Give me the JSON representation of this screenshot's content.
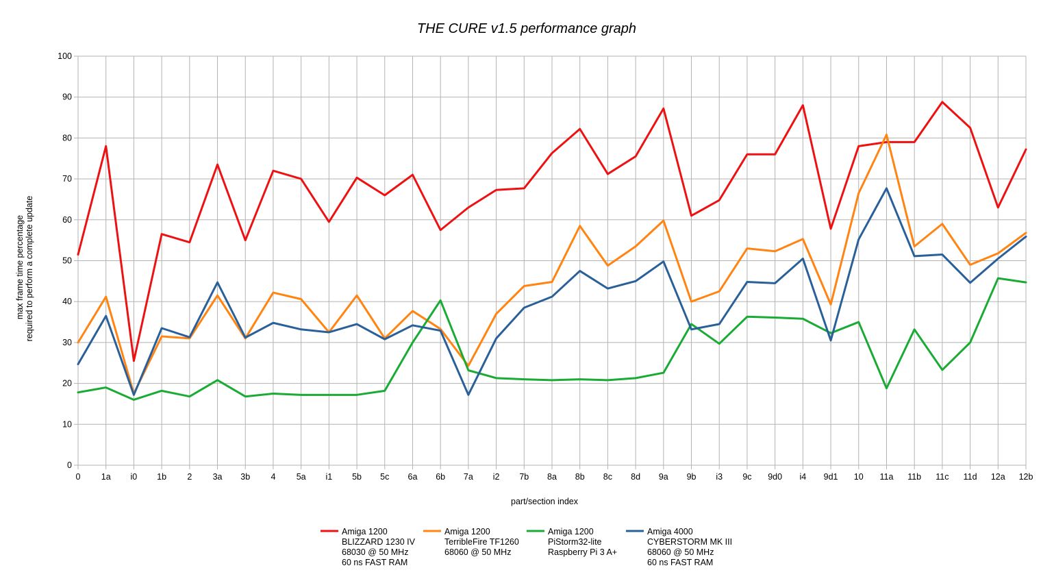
{
  "chart_data": {
    "type": "line",
    "title": "THE CURE v1.5 performance graph",
    "xlabel": "part/section index",
    "ylabel_lines": [
      "max frame time percentage",
      "required to perform a complete update"
    ],
    "ylim": [
      0,
      100
    ],
    "yticks": [
      0,
      10,
      20,
      30,
      40,
      50,
      60,
      70,
      80,
      90,
      100
    ],
    "grid": true,
    "legend_position": "bottom",
    "categories": [
      "0",
      "1a",
      "i0",
      "1b",
      "2",
      "3a",
      "3b",
      "4",
      "5a",
      "i1",
      "5b",
      "5c",
      "6a",
      "6b",
      "7a",
      "i2",
      "7b",
      "8a",
      "8b",
      "8c",
      "8d",
      "9a",
      "9b",
      "i3",
      "9c",
      "9d0",
      "i4",
      "9d1",
      "10",
      "11a",
      "11b",
      "11c",
      "11d",
      "12a",
      "12b"
    ],
    "series": [
      {
        "name_lines": [
          "Amiga 1200",
          "BLIZZARD 1230 IV",
          "68030 @ 50 MHz",
          "60 ns FAST RAM"
        ],
        "color": "#ee1111",
        "values": [
          51.5,
          78,
          25.5,
          56.5,
          54.5,
          73.5,
          55,
          72,
          70,
          59.5,
          70.3,
          66,
          71,
          57.5,
          63,
          67.3,
          67.7,
          76.3,
          82.2,
          71.2,
          75.5,
          87.2,
          61,
          64.8,
          76,
          76,
          88,
          57.8,
          78,
          79,
          79,
          88.8,
          82.5,
          63,
          77.2
        ]
      },
      {
        "name_lines": [
          "Amiga 1200",
          "TerribleFire TF1260",
          "68060 @ 50 MHz"
        ],
        "color": "#ff8411",
        "values": [
          30,
          41.2,
          17.5,
          31.5,
          31,
          41.5,
          31,
          42.2,
          40.6,
          32.5,
          41.5,
          31,
          37.7,
          33.3,
          24.3,
          37,
          43.8,
          44.8,
          58.5,
          48.8,
          53.5,
          59.8,
          40,
          42.5,
          53,
          52.3,
          55.3,
          39.3,
          66.5,
          80.8,
          53.5,
          59,
          49,
          51.8,
          56.8
        ]
      },
      {
        "name_lines": [
          "Amiga 1200",
          "PiStorm32-lite",
          "Raspberry Pi 3 A+"
        ],
        "color": "#1aab35",
        "values": [
          17.8,
          19,
          16,
          18.2,
          16.8,
          20.8,
          16.8,
          17.5,
          17.2,
          17.2,
          17.2,
          18.2,
          30,
          40.3,
          23.2,
          21.3,
          21,
          20.8,
          21,
          20.8,
          21.3,
          22.6,
          34.5,
          29.7,
          36.3,
          36.1,
          35.8,
          32.3,
          35,
          18.8,
          33.2,
          23.3,
          30,
          45.7,
          44.7
        ]
      },
      {
        "name_lines": [
          "Amiga 4000",
          "CYBERSTORM MK III",
          "68060 @ 50 MHz",
          "60 ns FAST RAM"
        ],
        "color": "#2a6099",
        "values": [
          24.7,
          36.5,
          17.2,
          33.5,
          31.3,
          44.7,
          31.2,
          34.8,
          33.2,
          32.5,
          34.5,
          30.8,
          34.2,
          32.9,
          17.2,
          31,
          38.5,
          41.2,
          47.5,
          43.2,
          45,
          49.8,
          33.2,
          34.5,
          44.8,
          44.5,
          50.5,
          30.5,
          55.2,
          67.7,
          51.1,
          51.5,
          44.6,
          50.5,
          55.9
        ]
      }
    ]
  }
}
